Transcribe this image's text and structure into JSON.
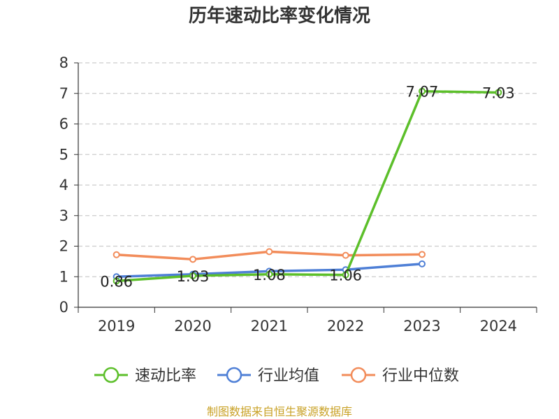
{
  "chart_data": {
    "type": "line",
    "title": "历年速动比率变化情况",
    "xlabel": "",
    "ylabel": "",
    "categories": [
      "2019",
      "2020",
      "2021",
      "2022",
      "2023",
      "2024"
    ],
    "ylim": [
      0,
      8
    ],
    "yticks": [
      "0",
      "1",
      "2",
      "3",
      "4",
      "5",
      "6",
      "7",
      "8"
    ],
    "grid": true,
    "legend_position": "bottom",
    "series": [
      {
        "name": "速动比率",
        "color": "#5cbf2a",
        "values": [
          0.86,
          1.03,
          1.08,
          1.06,
          7.07,
          7.03
        ],
        "labels": [
          "0.86",
          "1.03",
          "1.08",
          "1.06",
          "7.07",
          "7.03"
        ]
      },
      {
        "name": "行业均值",
        "color": "#4e7fd6",
        "values": [
          1.0,
          1.08,
          1.18,
          1.23,
          1.42,
          null
        ]
      },
      {
        "name": "行业中位数",
        "color": "#f28c5a",
        "values": [
          1.72,
          1.57,
          1.82,
          1.7,
          1.73,
          null
        ]
      }
    ]
  },
  "source_note": "制图数据来自恒生聚源数据库"
}
